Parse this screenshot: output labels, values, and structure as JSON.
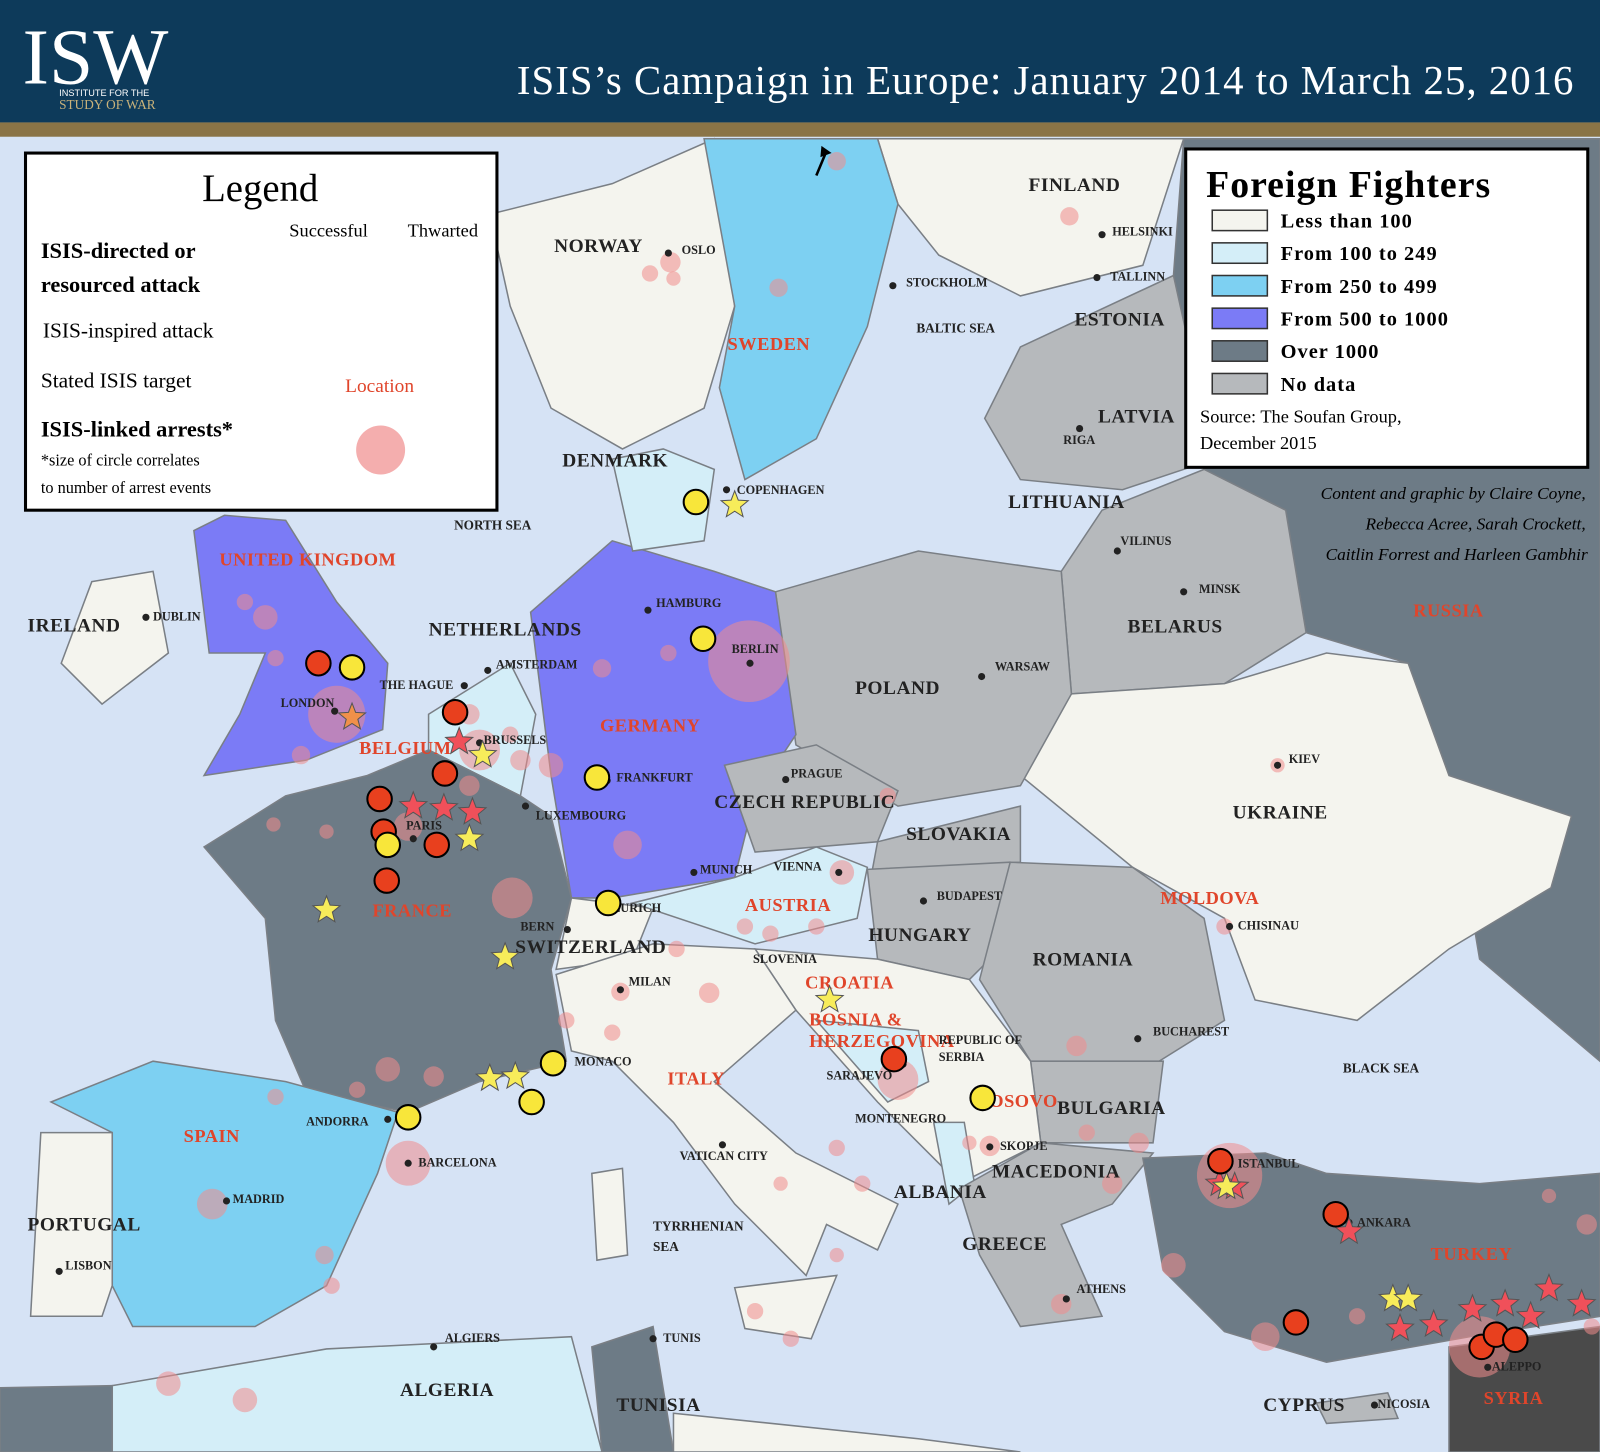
{
  "header": {
    "logo": "ISW",
    "logo_sub": [
      "INSTITUTE FOR THE",
      "STUDY OF WAR"
    ],
    "title": "ISIS’s Campaign in Europe: January 2014 to March 25, 2016"
  },
  "legend": {
    "title": "Legend",
    "col_successful": "Successful",
    "col_thwarted": "Thwarted",
    "directed": [
      "ISIS-directed or",
      "resourced attack"
    ],
    "inspired": "ISIS-inspired attack",
    "target": "Stated ISIS target",
    "target_sample": "Location",
    "arrests": "ISIS-linked arrests*",
    "arrests_note": [
      "*size of circle correlates",
      "to number of arrest events"
    ]
  },
  "foreign_fighters": {
    "title": "Foreign Fighters",
    "items": [
      {
        "label": "Less than 100",
        "color": "#f4f4ee"
      },
      {
        "label": "From 100 to 249",
        "color": "#d4eef8"
      },
      {
        "label": "From 250 to 499",
        "color": "#7dd0f2"
      },
      {
        "label": "From 500 to 1000",
        "color": "#7b7bf6"
      },
      {
        "label": "Over 1000",
        "color": "#6d7b86"
      },
      {
        "label": "No data",
        "color": "#b6b9bc"
      }
    ],
    "source": [
      "Source: The Soufan Group,",
      "December 2015"
    ]
  },
  "credits": [
    "Content and graphic by Claire Coyne,",
    "Rebecca Acree, Sarah Crockett,",
    "Caitlin Forrest and Harleen Gambhir"
  ],
  "map": {
    "countries": [
      "FINLAND",
      "NORWAY",
      "DENMARK",
      "ESTONIA",
      "LATVIA",
      "LITHUANIA",
      "BELARUS",
      "IRELAND",
      "NETHERLANDS",
      "POLAND",
      "CZECH REPUBLIC",
      "SLOVAKIA",
      "UKRAINE",
      "HUNGARY",
      "ROMANIA",
      "SWITZERLAND",
      "BULGARIA",
      "MACEDONIA",
      "ALBANIA",
      "GREECE",
      "PORTUGAL",
      "CYPRUS",
      "ALGERIA",
      "TUNISIA"
    ],
    "stated_targets": [
      "UNITED KINGDOM",
      "BELGIUM",
      "FRANCE",
      "GERMANY",
      "SWEDEN",
      "SPAIN",
      "ITALY",
      "AUSTRIA",
      "CROATIA",
      "BOSNIA &",
      "HERZEGOVINA",
      "KOSOVO",
      "MOLDOVA",
      "RUSSIA",
      "TURKEY",
      "SYRIA"
    ],
    "cities": [
      "OSLO",
      "STOCKHOLM",
      "HELSINKI",
      "TALLINN",
      "RIGA",
      "COPENHAGEN",
      "DUBLIN",
      "LONDON",
      "THE HAGUE",
      "AMSTERDAM",
      "BRUSSELS",
      "HAMBURG",
      "BERLIN",
      "FRANKFURT",
      "LUXEMBOURG",
      "PARIS",
      "MUNICH",
      "ZURICH",
      "BERN",
      "VIENNA",
      "PRAGUE",
      "WARSAW",
      "VILINUS",
      "MINSK",
      "KIEV",
      "BUDAPEST",
      "CHISINAU",
      "BUCHAREST",
      "SLOVENIA",
      "MILAN",
      "MONACO",
      "SARAJEVO",
      "REPUBLIC OF",
      "SERBIA",
      "MONTENEGRO",
      "SKOPJE",
      "ANDORRA",
      "BARCELONA",
      "MADRID",
      "LISBON",
      "VATICAN CITY",
      "ATHENS",
      "ISTANBUL",
      "ANKARA",
      "ALEPPO",
      "NICOSIA",
      "ALGIERS",
      "TUNIS"
    ],
    "seas": [
      "NORTH SEA",
      "BALTIC SEA",
      "BLACK SEA",
      "TYRRHENIAN",
      "SEA"
    ]
  }
}
